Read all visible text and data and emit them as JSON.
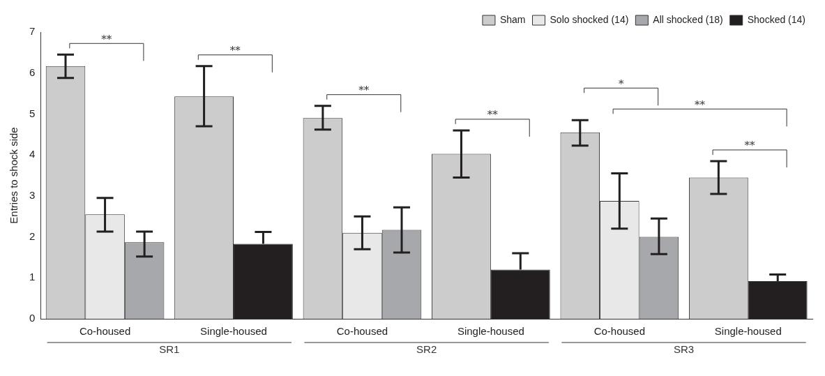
{
  "chart_data": {
    "type": "bar",
    "ylabel": "Entries to shock side",
    "categories": [
      "Co-housed",
      "Single-housed",
      "Co-housed",
      "Single-housed",
      "Co-housed",
      "Single-housed"
    ],
    "series": [
      {
        "name": "Sham",
        "color": "#cccccc",
        "values": [
          6.17,
          5.43,
          4.9,
          4.03,
          4.55,
          3.45
        ],
        "errors": [
          [
            5.88,
            6.45
          ],
          [
            4.7,
            6.17
          ],
          [
            4.62,
            5.2
          ],
          [
            3.45,
            4.6
          ],
          [
            4.23,
            4.85
          ],
          [
            3.05,
            3.85
          ]
        ]
      },
      {
        "name": "Solo shocked (14)",
        "color": "#e8e8e8",
        "values": [
          2.55,
          null,
          2.1,
          null,
          2.88,
          null
        ],
        "errors": [
          [
            2.13,
            2.95
          ],
          null,
          [
            1.7,
            2.5
          ],
          null,
          [
            2.2,
            3.55
          ],
          null
        ]
      },
      {
        "name": "All shocked (18)",
        "color": "#a7a8ab",
        "values": [
          1.87,
          null,
          2.17,
          null,
          2.0,
          null
        ],
        "errors": [
          [
            1.52,
            2.13
          ],
          null,
          [
            1.62,
            2.72
          ],
          null,
          [
            1.58,
            2.45
          ],
          null
        ]
      },
      {
        "name": "Shocked (14)",
        "color": "#231f20",
        "values": [
          null,
          1.83,
          null,
          1.2,
          null,
          0.92
        ],
        "errors": [
          null,
          [
            1.83,
            2.12
          ],
          null,
          [
            1.2,
            1.6
          ],
          null,
          [
            0.92,
            1.08
          ]
        ]
      }
    ],
    "ylim": [
      0,
      7
    ],
    "yticks": [
      0,
      1,
      2,
      3,
      4,
      5,
      6,
      7
    ],
    "grid": false,
    "legend": "top right",
    "annotations": [
      "**",
      "**",
      "**",
      "**",
      "*",
      "**",
      "**",
      "SR1",
      "SR2",
      "SR3"
    ]
  }
}
